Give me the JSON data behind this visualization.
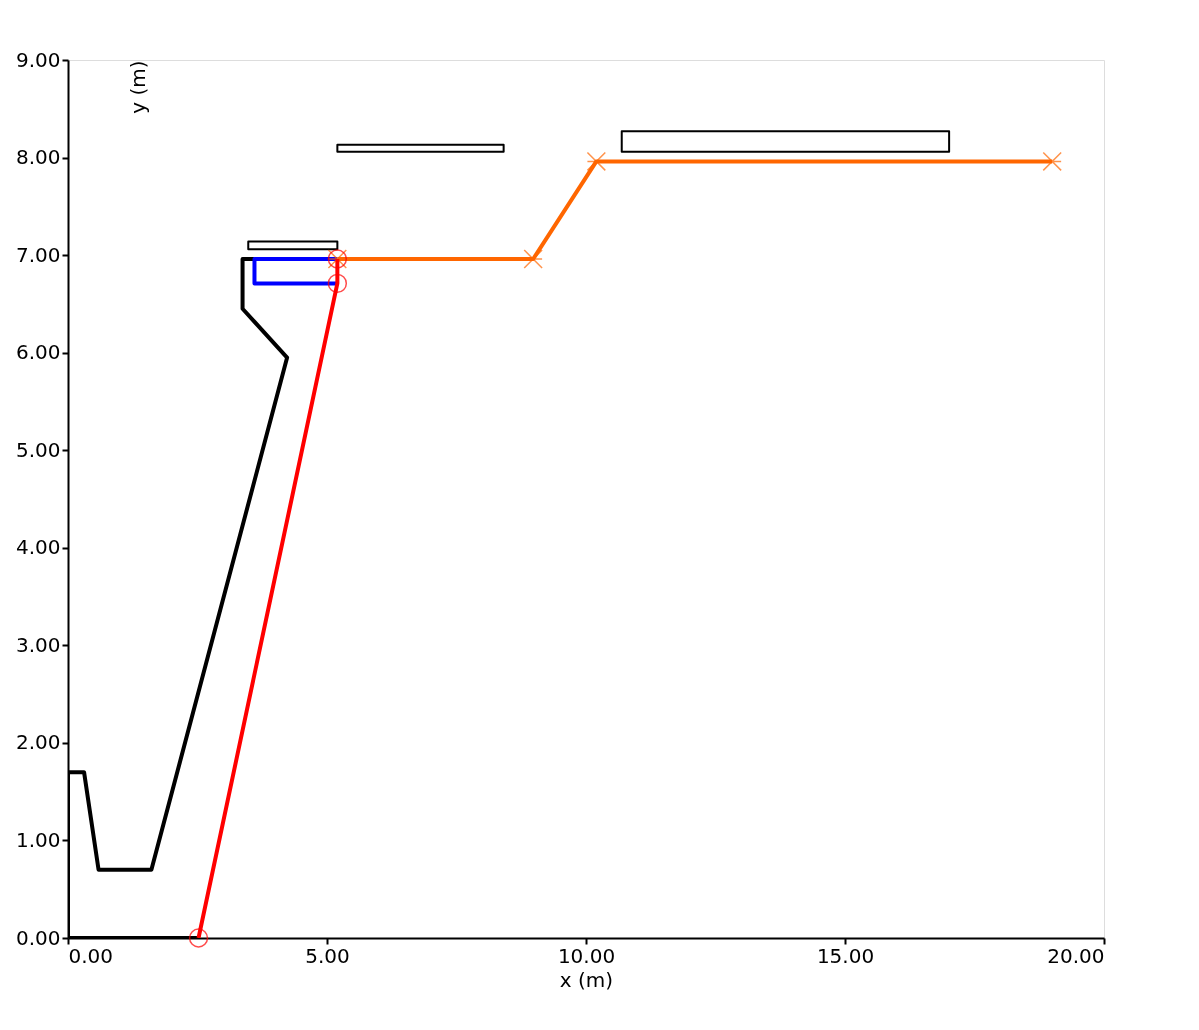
{
  "chart_data": {
    "type": "line",
    "xlabel": "x (m)",
    "ylabel": "y (m)",
    "xlim": [
      0,
      20
    ],
    "ylim": [
      0,
      9
    ],
    "xticks": [
      {
        "value": 0,
        "label": "0.00"
      },
      {
        "value": 5,
        "label": "5.00"
      },
      {
        "value": 10,
        "label": "10.00"
      },
      {
        "value": 15,
        "label": "15.00"
      },
      {
        "value": 20,
        "label": "20.00"
      }
    ],
    "yticks": [
      {
        "value": 0,
        "label": "0.00"
      },
      {
        "value": 1,
        "label": "1.00"
      },
      {
        "value": 2,
        "label": "2.00"
      },
      {
        "value": 3,
        "label": "3.00"
      },
      {
        "value": 4,
        "label": "4.00"
      },
      {
        "value": 5,
        "label": "5.00"
      },
      {
        "value": 6,
        "label": "6.00"
      },
      {
        "value": 7,
        "label": "7.00"
      },
      {
        "value": 8,
        "label": "8.00"
      },
      {
        "value": 9,
        "label": "9.00"
      }
    ],
    "grid": false,
    "legend": false,
    "line_style": "solid",
    "series": [
      {
        "color": "#000000",
        "marker": "none",
        "x": [
          2.52,
          0,
          0,
          0.31,
          0.59,
          1.61,
          4.23,
          3.37,
          3.37,
          3.6
        ],
        "values": [
          0,
          0,
          1.7,
          1.7,
          0.7,
          0.7,
          5.95,
          6.45,
          6.96,
          6.96
        ]
      },
      {
        "color": "#0000ff",
        "marker": "none",
        "x": [
          5.2,
          3.6,
          3.6,
          5.2
        ],
        "values": [
          6.96,
          6.96,
          6.71,
          6.71
        ]
      },
      {
        "color": "#000000",
        "marker": "none",
        "x": [
          3.48,
          5.2,
          5.2,
          3.48,
          3.48,
          5.2
        ],
        "values": [
          7.06,
          7.06,
          7.14,
          7.14,
          7.06,
          7.06
        ]
      },
      {
        "color": "#000000",
        "marker": "none",
        "x": [
          5.2,
          8.41,
          8.41,
          5.2,
          5.2,
          8.41
        ],
        "values": [
          8.06,
          8.06,
          8.13,
          8.13,
          8.06,
          8.06
        ]
      },
      {
        "color": "#000000",
        "marker": "none",
        "x": [
          10.69,
          17.01,
          17.01,
          10.69,
          10.69,
          17.01
        ],
        "values": [
          8.06,
          8.06,
          8.27,
          8.27,
          8.06,
          8.06
        ]
      },
      {
        "color": "#ff6600",
        "marker": "cross",
        "x": [
          5.2,
          8.98,
          10.2,
          19.0
        ],
        "values": [
          6.96,
          6.96,
          7.96,
          7.96
        ]
      },
      {
        "color": "#ff0000",
        "marker": "circle",
        "x": [
          2.52,
          5.2,
          5.2
        ],
        "values": [
          0,
          6.71,
          6.96
        ]
      }
    ]
  }
}
